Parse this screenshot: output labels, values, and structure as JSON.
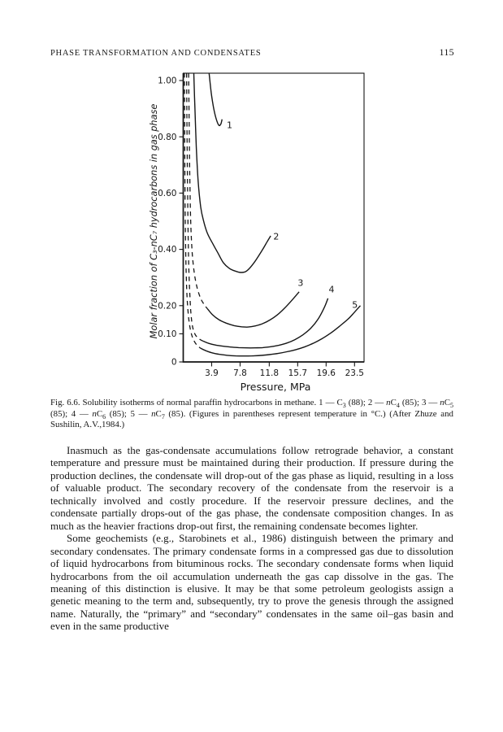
{
  "header": {
    "running_head": "PHASE TRANSFORMATION AND CONDENSATES",
    "page_number": "115"
  },
  "figure": {
    "caption_segments": [
      {
        "t": "Fig. 6.6. Solubility isotherms of normal paraffin hydrocarbons in methane. 1 — C"
      },
      {
        "t": "3",
        "s": "sub"
      },
      {
        "t": " (88); 2 — "
      },
      {
        "t": "n",
        "s": "i"
      },
      {
        "t": "C"
      },
      {
        "t": "4",
        "s": "sub"
      },
      {
        "t": " (85); 3 — "
      },
      {
        "t": "n",
        "s": "i"
      },
      {
        "t": "C"
      },
      {
        "t": "5",
        "s": "sub"
      },
      {
        "t": " (85); 4 — "
      },
      {
        "t": "n",
        "s": "i"
      },
      {
        "t": "C"
      },
      {
        "t": "6",
        "s": "sub"
      },
      {
        "t": " (85); 5 — "
      },
      {
        "t": "n",
        "s": "i"
      },
      {
        "t": "C"
      },
      {
        "t": "7",
        "s": "sub"
      },
      {
        "t": " (85). (Figures in parentheses represent temperature in °C.) (After Zhuze and Sushilin, A.V.,1984.)"
      }
    ]
  },
  "chart_data": {
    "type": "line",
    "title": "",
    "xlabel": "Pressure, MPa",
    "ylabel": "Molar fraction of C₃-nC₇ hydrocarbons in gas phase",
    "xlim": [
      0,
      24.9
    ],
    "ylim": [
      0,
      1.026
    ],
    "grid": false,
    "legend_position": "curve-end labels",
    "x_ticks": [
      3.9,
      7.8,
      11.8,
      15.7,
      19.6,
      23.5
    ],
    "x_tick_labels": [
      "3.9",
      "7.8",
      "11.8",
      "15.7",
      "19.6",
      "23.5"
    ],
    "y_ticks": [
      0,
      0.1,
      0.2,
      0.4,
      0.6,
      0.8,
      1.0
    ],
    "y_tick_labels": [
      "0",
      "0.10",
      "0.20",
      "0.40",
      "0.60",
      "0.80",
      "1.00"
    ],
    "series": [
      {
        "label": "1",
        "name": "C₃ (88 °C)",
        "label_at": [
          6.35,
          0.842
        ],
        "dashed": [],
        "solid": [
          [
            3.55,
            1.026
          ],
          [
            3.85,
            0.955
          ],
          [
            4.15,
            0.905
          ],
          [
            4.5,
            0.865
          ],
          [
            4.88,
            0.841
          ],
          [
            5.15,
            0.845
          ],
          [
            5.33,
            0.862
          ]
        ]
      },
      {
        "label": "2",
        "name": "nC₄ (85 °C)",
        "label_at": [
          12.75,
          0.445
        ],
        "dashed": [],
        "solid": [
          [
            1.45,
            1.026
          ],
          [
            1.6,
            0.9
          ],
          [
            1.8,
            0.76
          ],
          [
            2.05,
            0.64
          ],
          [
            2.4,
            0.55
          ],
          [
            2.75,
            0.505
          ],
          [
            3.3,
            0.458
          ],
          [
            4.1,
            0.418
          ],
          [
            4.8,
            0.385
          ],
          [
            5.5,
            0.353
          ],
          [
            6.3,
            0.333
          ],
          [
            7.1,
            0.323
          ],
          [
            7.9,
            0.318
          ],
          [
            8.7,
            0.323
          ],
          [
            9.7,
            0.352
          ],
          [
            10.8,
            0.396
          ],
          [
            11.5,
            0.427
          ],
          [
            12.0,
            0.448
          ]
        ]
      },
      {
        "label": "3",
        "name": "nC₅ (85 °C)",
        "label_at": [
          16.1,
          0.28
        ],
        "dashed": [
          [
            0.74,
            1.026
          ],
          [
            0.82,
            0.82
          ],
          [
            0.92,
            0.62
          ],
          [
            1.05,
            0.48
          ],
          [
            1.25,
            0.38
          ],
          [
            1.55,
            0.31
          ],
          [
            1.92,
            0.262
          ],
          [
            2.4,
            0.225
          ],
          [
            2.9,
            0.203
          ],
          [
            3.29,
            0.19
          ]
        ],
        "solid": [
          [
            3.29,
            0.19
          ],
          [
            4.0,
            0.168
          ],
          [
            4.9,
            0.15
          ],
          [
            5.9,
            0.138
          ],
          [
            7.0,
            0.129
          ],
          [
            8.0,
            0.125
          ],
          [
            8.9,
            0.124
          ],
          [
            9.9,
            0.128
          ],
          [
            10.9,
            0.136
          ],
          [
            11.9,
            0.149
          ],
          [
            12.9,
            0.167
          ],
          [
            13.9,
            0.191
          ],
          [
            14.9,
            0.219
          ],
          [
            15.9,
            0.249
          ]
        ]
      },
      {
        "label": "4",
        "name": "nC₆ (85 °C)",
        "label_at": [
          20.35,
          0.258
        ],
        "dashed": [
          [
            0.46,
            1.026
          ],
          [
            0.52,
            0.8
          ],
          [
            0.6,
            0.6
          ],
          [
            0.68,
            0.44
          ],
          [
            0.78,
            0.32
          ],
          [
            0.92,
            0.23
          ],
          [
            1.08,
            0.165
          ],
          [
            1.28,
            0.125
          ],
          [
            1.55,
            0.102
          ],
          [
            1.9,
            0.088
          ],
          [
            2.35,
            0.079
          ],
          [
            2.73,
            0.074
          ]
        ],
        "solid": [
          [
            2.73,
            0.074
          ],
          [
            3.5,
            0.066
          ],
          [
            4.4,
            0.06
          ],
          [
            5.4,
            0.056
          ],
          [
            6.5,
            0.053
          ],
          [
            7.6,
            0.051
          ],
          [
            8.7,
            0.05
          ],
          [
            9.8,
            0.05
          ],
          [
            10.9,
            0.051
          ],
          [
            12.0,
            0.054
          ],
          [
            13.1,
            0.059
          ],
          [
            14.2,
            0.067
          ],
          [
            15.3,
            0.079
          ],
          [
            16.4,
            0.096
          ],
          [
            17.5,
            0.12
          ],
          [
            18.5,
            0.152
          ],
          [
            19.4,
            0.196
          ],
          [
            19.85,
            0.226
          ]
        ]
      },
      {
        "label": "5",
        "name": "nC₇ (85 °C)",
        "label_at": [
          23.55,
          0.202
        ],
        "dashed": [
          [
            0.16,
            1.026
          ],
          [
            0.2,
            0.78
          ],
          [
            0.25,
            0.58
          ],
          [
            0.32,
            0.42
          ],
          [
            0.42,
            0.3
          ],
          [
            0.56,
            0.215
          ],
          [
            0.75,
            0.155
          ],
          [
            1.0,
            0.112
          ],
          [
            1.35,
            0.082
          ],
          [
            1.8,
            0.062
          ],
          [
            2.35,
            0.049
          ]
        ],
        "solid": [
          [
            2.35,
            0.049
          ],
          [
            3.1,
            0.04
          ],
          [
            4.0,
            0.032
          ],
          [
            5.0,
            0.027
          ],
          [
            6.1,
            0.0235
          ],
          [
            7.2,
            0.0215
          ],
          [
            8.3,
            0.021
          ],
          [
            9.4,
            0.0215
          ],
          [
            10.6,
            0.023
          ],
          [
            11.8,
            0.026
          ],
          [
            13.0,
            0.03
          ],
          [
            14.2,
            0.036
          ],
          [
            15.4,
            0.043
          ],
          [
            16.6,
            0.053
          ],
          [
            17.8,
            0.066
          ],
          [
            19.0,
            0.082
          ],
          [
            20.2,
            0.102
          ],
          [
            21.4,
            0.126
          ],
          [
            22.6,
            0.152
          ],
          [
            23.5,
            0.177
          ],
          [
            24.3,
            0.2
          ]
        ]
      }
    ]
  },
  "body": {
    "paragraphs": [
      "Inasmuch as the gas-condensate accumulations follow retrograde behavior, a constant temperature and pressure must be maintained during their production. If pressure during the production declines, the condensate will drop-out of the gas phase as liquid, resulting in a loss of valuable product. The secondary recovery of the condensate from the reservoir is a technically involved and costly procedure. If the reservoir pressure declines, and the condensate partially drops-out of the gas phase, the condensate composition changes. In as much as the heavier fractions drop-out first, the remaining condensate becomes lighter.",
      "Some geochemists (e.g., Starobinets et al., 1986) distinguish between the primary and secondary condensates. The primary condensate forms in a compressed gas due to dissolution of liquid hydrocarbons from bituminous rocks. The secondary condensate forms when liquid hydrocarbons from the oil accumulation underneath the gas cap dissolve in the gas. The meaning of this distinction is elusive. It may be that some petroleum geologists assign a genetic meaning to the term and, subsequently, try to prove the genesis through the assigned name. Naturally, the “primary” and “secondary” condensates in the same oil–gas basin and even in the same productive"
    ]
  }
}
